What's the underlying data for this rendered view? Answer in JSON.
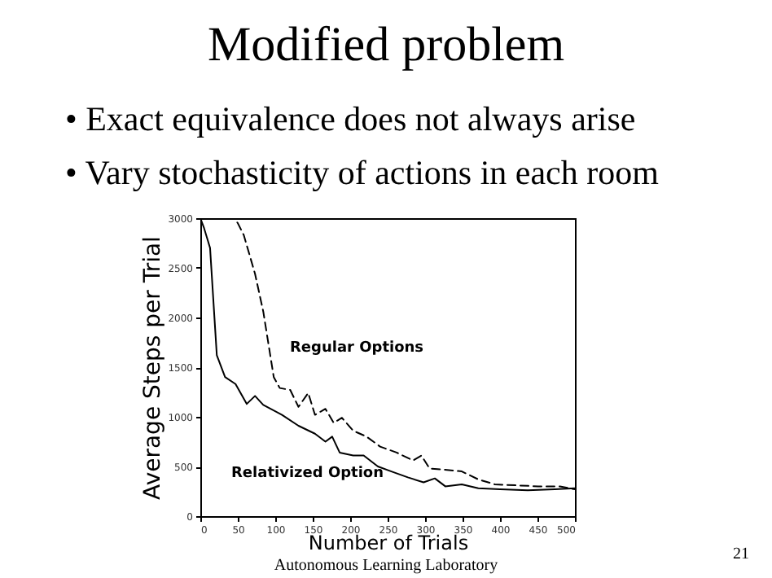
{
  "chart_data": {
    "type": "line",
    "title": "Modified problem",
    "annotations": [
      "• Exact equivalence does not always arise",
      "• Vary stochasticity of actions in each room",
      "Autonomous Learning Laboratory",
      "21"
    ],
    "xlabel": "Number of Trials",
    "ylabel": "Average Steps per Trial",
    "xlim": [
      0,
      500
    ],
    "xticks": [
      0,
      50,
      100,
      150,
      200,
      250,
      300,
      350,
      400,
      450,
      500
    ],
    "ylim": [
      0,
      3000
    ],
    "yticks": [
      0,
      500,
      1000,
      1500,
      2000,
      2500,
      3000
    ],
    "grid": false,
    "legend": false,
    "marker": "none",
    "series": [
      {
        "name": "Regular Options",
        "color": "#000000",
        "line_style": "dashed",
        "x": [
          0,
          45,
          50,
          58,
          73,
          84,
          91,
          98,
          106,
          120,
          131,
          144,
          153,
          167,
          178,
          189,
          204,
          222,
          240,
          262,
          284,
          295,
          306,
          324,
          349,
          371,
          393,
          422,
          451,
          480,
          500
        ],
        "values": [
          3000,
          3000,
          2950,
          2830,
          2440,
          2060,
          1730,
          1400,
          1290,
          1270,
          1100,
          1240,
          1020,
          1080,
          940,
          990,
          860,
          800,
          700,
          640,
          560,
          610,
          480,
          470,
          450,
          370,
          320,
          310,
          300,
          300,
          270
        ]
      },
      {
        "name": "Relativized Option",
        "color": "#000000",
        "line_style": "solid",
        "x": [
          0,
          5,
          13,
          22,
          33,
          47,
          62,
          73,
          84,
          109,
          131,
          153,
          167,
          176,
          186,
          204,
          218,
          237,
          255,
          277,
          298,
          313,
          327,
          349,
          371,
          400,
          437,
          473,
          500
        ],
        "values": [
          3000,
          2900,
          2700,
          1620,
          1400,
          1330,
          1130,
          1210,
          1120,
          1020,
          910,
          830,
          750,
          800,
          640,
          610,
          610,
          500,
          450,
          390,
          340,
          380,
          300,
          320,
          280,
          270,
          260,
          270,
          280
        ]
      }
    ]
  }
}
